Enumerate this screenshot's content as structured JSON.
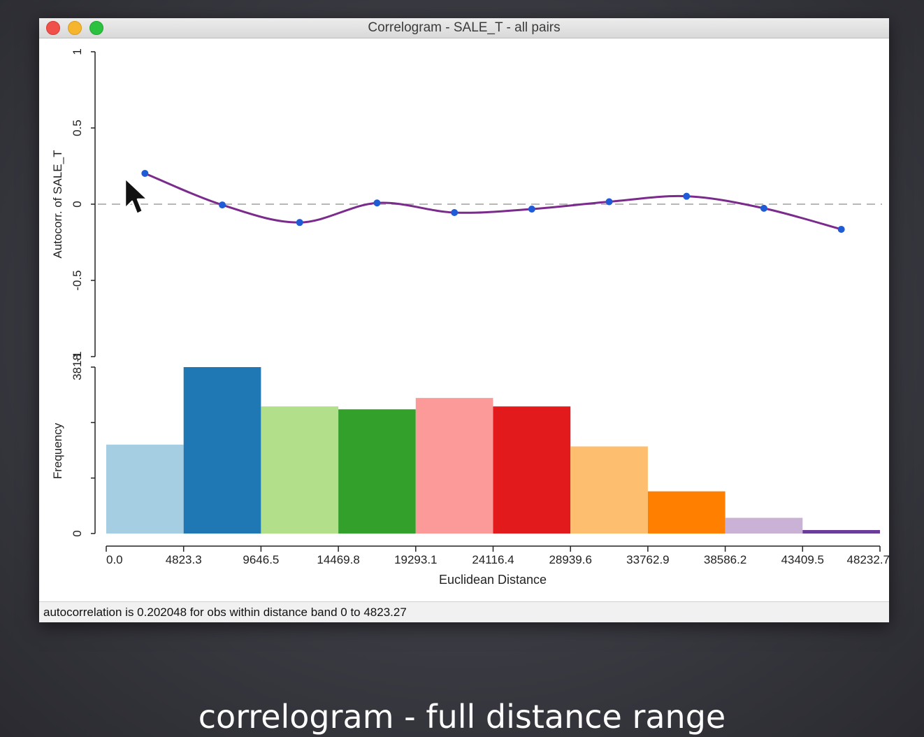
{
  "window": {
    "title": "Correlogram - SALE_T - all pairs"
  },
  "status": {
    "text": "autocorrelation is 0.202048 for obs within distance band 0 to 4823.27"
  },
  "caption": "correlogram - full distance range",
  "chart_data": [
    {
      "type": "line",
      "ylabel": "Autocorr. of SALE_T",
      "ylim": [
        -1,
        1
      ],
      "yticks": [
        "-1",
        "-0.5",
        "0",
        "0.5",
        "1"
      ],
      "reference_line": 0,
      "x": [
        2411.6,
        7235,
        12058.2,
        16881.5,
        21704.8,
        26528,
        31351.3,
        36174.5,
        40997.8,
        45821.1
      ],
      "values": [
        0.202,
        -0.005,
        -0.12,
        0.008,
        -0.055,
        -0.032,
        0.016,
        0.052,
        -0.027,
        -0.165
      ],
      "colors": {
        "line": "#7a2b8c",
        "points": "#1f5bd6",
        "reference": "#b8b8b8"
      }
    },
    {
      "type": "bar",
      "xlabel": "Euclidean Distance",
      "ylabel": "Frequency",
      "yticks": [
        "0",
        "3818"
      ],
      "ylim": [
        0,
        3818
      ],
      "xticks": [
        "0.0",
        "4823.3",
        "9646.5",
        "14469.8",
        "19293.1",
        "24116.4",
        "28939.6",
        "33762.9",
        "38586.2",
        "43409.5",
        "48232.7"
      ],
      "values": [
        2040,
        3818,
        2916,
        2850,
        3110,
        2916,
        1998,
        968,
        360,
        80
      ],
      "colors": [
        "#a6cee3",
        "#1f78b4",
        "#b2df8a",
        "#33a02c",
        "#fb9a99",
        "#e31a1c",
        "#fdbf6f",
        "#ff7f00",
        "#cab2d6",
        "#6a3d9a"
      ]
    }
  ]
}
